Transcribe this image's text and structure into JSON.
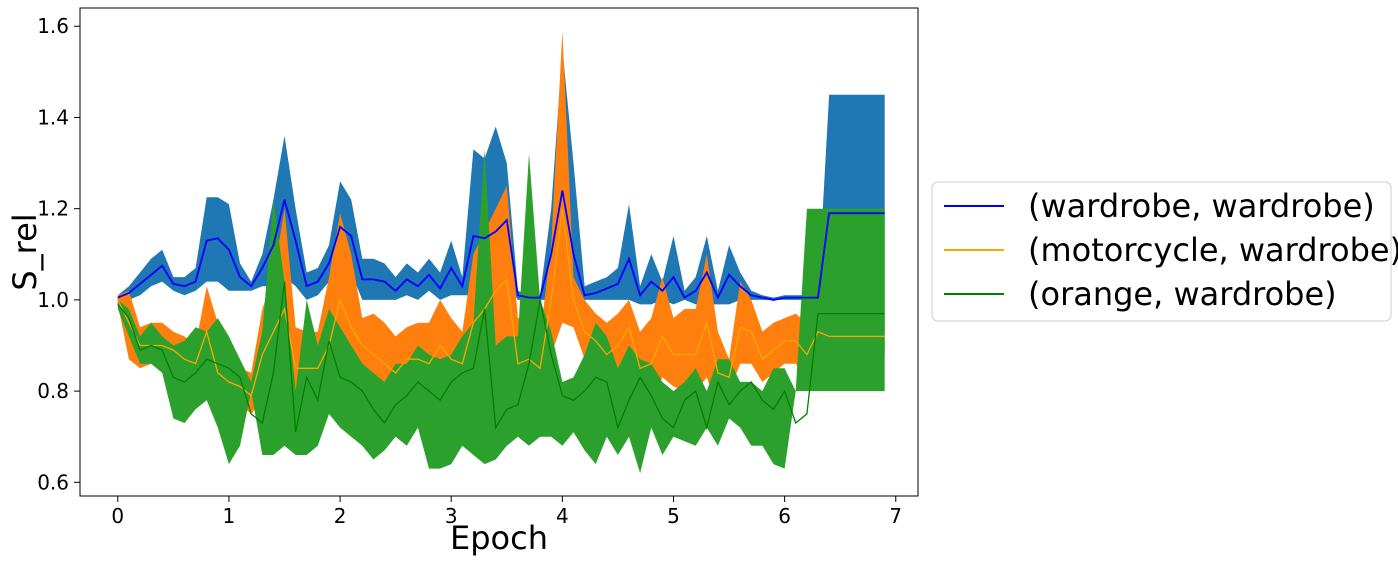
{
  "chart_data": {
    "type": "line",
    "xlabel": "Epoch",
    "ylabel": "S_rel",
    "xlim": [
      -0.34,
      7.2
    ],
    "ylim": [
      0.57,
      1.64
    ],
    "xticks": [
      0,
      1,
      2,
      3,
      4,
      5,
      6,
      7
    ],
    "yticks": [
      0.6,
      0.8,
      1.0,
      1.2,
      1.4,
      1.6
    ],
    "ytick_labels": [
      "0.6",
      "0.8",
      "1.0",
      "1.2",
      "1.4",
      "1.6"
    ],
    "legend_position": "center-right outside",
    "x": [
      0,
      0.1,
      0.2,
      0.3,
      0.4,
      0.5,
      0.6,
      0.7,
      0.8,
      0.9,
      1.0,
      1.1,
      1.2,
      1.3,
      1.4,
      1.5,
      1.6,
      1.7,
      1.8,
      1.9,
      2.0,
      2.1,
      2.2,
      2.3,
      2.4,
      2.5,
      2.6,
      2.7,
      2.8,
      2.9,
      3.0,
      3.1,
      3.2,
      3.3,
      3.4,
      3.5,
      3.6,
      3.7,
      3.8,
      3.9,
      4.0,
      4.1,
      4.2,
      4.3,
      4.4,
      4.5,
      4.6,
      4.7,
      4.8,
      4.9,
      5.0,
      5.1,
      5.2,
      5.3,
      5.4,
      5.5,
      5.6,
      5.7,
      5.8,
      5.9,
      6.0,
      6.1,
      6.2,
      6.3,
      6.4,
      6.5,
      6.6,
      6.7,
      6.8,
      6.9
    ],
    "series": [
      {
        "name": "(wardrobe, wardrobe)",
        "line_color": "#0000ff",
        "band_color": "#1f77b4",
        "mean": [
          1.005,
          1.015,
          1.035,
          1.055,
          1.075,
          1.035,
          1.03,
          1.04,
          1.13,
          1.135,
          1.11,
          1.05,
          1.03,
          1.07,
          1.12,
          1.22,
          1.13,
          1.03,
          1.04,
          1.08,
          1.16,
          1.14,
          1.045,
          1.045,
          1.04,
          1.02,
          1.045,
          1.03,
          1.055,
          1.025,
          1.07,
          1.03,
          1.14,
          1.135,
          1.15,
          1.175,
          1.01,
          1.005,
          1.005,
          1.1,
          1.24,
          1.1,
          1.01,
          1.015,
          1.025,
          1.035,
          1.09,
          1.01,
          1.04,
          1.02,
          1.05,
          1.005,
          1.02,
          1.06,
          1.005,
          1.055,
          1.03,
          1.01,
          1.005,
          1.0,
          1.005,
          1.005,
          1.005,
          1.005,
          1.19,
          1.19,
          1.19,
          1.19,
          1.19,
          1.19
        ],
        "upper": [
          1.01,
          1.03,
          1.06,
          1.09,
          1.11,
          1.05,
          1.05,
          1.07,
          1.225,
          1.225,
          1.21,
          1.08,
          1.04,
          1.1,
          1.22,
          1.36,
          1.2,
          1.06,
          1.07,
          1.12,
          1.26,
          1.22,
          1.09,
          1.09,
          1.08,
          1.05,
          1.08,
          1.06,
          1.09,
          1.06,
          1.13,
          1.05,
          1.33,
          1.31,
          1.38,
          1.3,
          1.02,
          1.01,
          1.01,
          1.2,
          1.55,
          1.3,
          1.03,
          1.04,
          1.05,
          1.07,
          1.21,
          1.03,
          1.1,
          1.04,
          1.14,
          1.02,
          1.05,
          1.14,
          1.02,
          1.12,
          1.06,
          1.02,
          1.01,
          1.005,
          1.01,
          1.01,
          1.01,
          1.01,
          1.45,
          1.45,
          1.45,
          1.45,
          1.45,
          1.45
        ],
        "lower": [
          1.0,
          1.0,
          1.01,
          1.03,
          1.04,
          1.02,
          1.01,
          1.02,
          1.04,
          1.04,
          1.02,
          1.02,
          1.02,
          1.03,
          1.03,
          1.05,
          1.03,
          1.0,
          1.01,
          1.04,
          1.06,
          1.06,
          1.0,
          1.0,
          1.0,
          1.0,
          1.01,
          1.0,
          1.02,
          1.0,
          1.01,
          1.01,
          1.01,
          1.01,
          1.0,
          1.04,
          1.0,
          1.0,
          1.0,
          1.0,
          1.0,
          1.0,
          1.0,
          1.0,
          1.0,
          1.0,
          1.0,
          0.99,
          0.99,
          1.0,
          0.99,
          1.0,
          0.99,
          0.99,
          0.99,
          0.99,
          1.0,
          1.0,
          1.0,
          1.0,
          1.0,
          1.0,
          1.0,
          1.0,
          0.93,
          0.93,
          0.93,
          0.93,
          0.93,
          0.93
        ]
      },
      {
        "name": "(motorcycle, wardrobe)",
        "line_color": "#ffa500",
        "band_color": "#ff7f0e",
        "mean": [
          1.0,
          0.95,
          0.9,
          0.9,
          0.9,
          0.89,
          0.87,
          0.86,
          0.93,
          0.84,
          0.82,
          0.81,
          0.79,
          0.88,
          0.93,
          0.98,
          0.85,
          0.85,
          0.85,
          0.9,
          1.0,
          0.94,
          0.9,
          0.88,
          0.86,
          0.84,
          0.87,
          0.87,
          0.86,
          0.9,
          0.87,
          0.86,
          0.95,
          0.98,
          1.02,
          1.045,
          0.86,
          0.87,
          0.85,
          1.0,
          1.2,
          1.0,
          0.93,
          0.91,
          0.88,
          0.9,
          0.94,
          0.85,
          0.86,
          0.92,
          0.88,
          0.88,
          0.88,
          0.95,
          0.84,
          0.83,
          0.94,
          0.93,
          0.87,
          0.89,
          0.91,
          0.91,
          0.88,
          0.93,
          0.92,
          0.92,
          0.92,
          0.92,
          0.92,
          0.92
        ],
        "upper": [
          1.01,
          1.02,
          0.94,
          0.95,
          0.95,
          0.93,
          0.92,
          0.9,
          1.03,
          0.95,
          0.88,
          0.85,
          0.84,
          0.98,
          1.05,
          1.2,
          0.94,
          0.93,
          0.93,
          1.05,
          1.19,
          1.1,
          0.96,
          0.97,
          0.95,
          0.92,
          0.94,
          0.95,
          0.95,
          1.0,
          0.96,
          0.93,
          1.1,
          1.15,
          1.2,
          1.25,
          0.96,
          0.96,
          0.92,
          1.12,
          1.59,
          1.05,
          1.0,
          0.97,
          0.95,
          0.97,
          1.0,
          0.93,
          0.96,
          1.05,
          0.96,
          0.98,
          0.98,
          1.1,
          0.93,
          0.87,
          1.04,
          1.0,
          0.93,
          0.95,
          0.96,
          0.97,
          0.95,
          0.97,
          0.96,
          0.96,
          0.96,
          0.96,
          0.96,
          0.96
        ],
        "lower": [
          0.99,
          0.87,
          0.85,
          0.86,
          0.85,
          0.85,
          0.83,
          0.82,
          0.84,
          0.76,
          0.77,
          0.77,
          0.75,
          0.78,
          0.82,
          0.83,
          0.77,
          0.8,
          0.8,
          0.8,
          0.86,
          0.84,
          0.84,
          0.81,
          0.8,
          0.78,
          0.82,
          0.81,
          0.8,
          0.82,
          0.8,
          0.8,
          0.83,
          0.84,
          0.86,
          0.9,
          0.78,
          0.8,
          0.8,
          0.88,
          0.95,
          0.94,
          0.87,
          0.86,
          0.82,
          0.84,
          0.88,
          0.79,
          0.78,
          0.83,
          0.81,
          0.8,
          0.8,
          0.83,
          0.76,
          0.8,
          0.86,
          0.86,
          0.82,
          0.84,
          0.86,
          0.86,
          0.82,
          0.88,
          0.88,
          0.88,
          0.88,
          0.88,
          0.88,
          0.88
        ]
      },
      {
        "name": "(orange, wardrobe)",
        "line_color": "#008000",
        "band_color": "#2ca02c",
        "mean": [
          0.99,
          0.96,
          0.89,
          0.9,
          0.89,
          0.83,
          0.82,
          0.84,
          0.87,
          0.86,
          0.85,
          0.83,
          0.75,
          0.73,
          0.84,
          1.04,
          0.71,
          0.83,
          0.78,
          0.91,
          0.83,
          0.82,
          0.8,
          0.76,
          0.73,
          0.77,
          0.79,
          0.82,
          0.8,
          0.78,
          0.82,
          0.84,
          0.85,
          0.98,
          0.72,
          0.76,
          0.77,
          0.86,
          1.0,
          0.88,
          0.79,
          0.78,
          0.8,
          0.83,
          0.82,
          0.72,
          0.78,
          0.83,
          0.79,
          0.74,
          0.72,
          0.78,
          0.8,
          0.72,
          0.82,
          0.77,
          0.8,
          0.82,
          0.78,
          0.76,
          0.8,
          0.73,
          0.75,
          0.97,
          0.97,
          0.97,
          0.97,
          0.97,
          0.97,
          0.97
        ],
        "upper": [
          1.0,
          0.98,
          0.92,
          0.95,
          0.92,
          0.9,
          0.91,
          0.94,
          0.93,
          0.96,
          0.92,
          0.87,
          0.82,
          0.93,
          1.22,
          1.04,
          0.8,
          1.0,
          0.9,
          0.98,
          0.94,
          0.9,
          0.86,
          0.84,
          0.82,
          0.86,
          0.86,
          0.9,
          0.88,
          0.87,
          0.88,
          0.92,
          0.95,
          1.33,
          0.9,
          0.92,
          0.92,
          1.32,
          1.0,
          0.93,
          0.82,
          0.83,
          0.88,
          0.95,
          0.92,
          0.85,
          0.9,
          0.87,
          0.86,
          0.82,
          0.8,
          0.82,
          0.85,
          0.8,
          0.87,
          0.87,
          0.82,
          0.82,
          0.8,
          0.85,
          0.85,
          0.8,
          1.2,
          1.2,
          1.2,
          1.2,
          1.2,
          1.2,
          1.2,
          1.2
        ],
        "lower": [
          0.98,
          0.92,
          0.86,
          0.86,
          0.84,
          0.74,
          0.73,
          0.76,
          0.78,
          0.72,
          0.64,
          0.68,
          0.8,
          0.66,
          0.66,
          0.68,
          0.66,
          0.66,
          0.68,
          0.75,
          0.72,
          0.7,
          0.68,
          0.65,
          0.67,
          0.7,
          0.68,
          0.72,
          0.63,
          0.63,
          0.64,
          0.68,
          0.66,
          0.64,
          0.65,
          0.68,
          0.7,
          0.68,
          0.7,
          0.7,
          0.68,
          0.71,
          0.67,
          0.64,
          0.7,
          0.66,
          0.7,
          0.62,
          0.72,
          0.66,
          0.7,
          0.69,
          0.68,
          0.72,
          0.68,
          0.74,
          0.72,
          0.68,
          0.68,
          0.64,
          0.63,
          0.8,
          0.8,
          0.8,
          0.8,
          0.8,
          0.8,
          0.8,
          0.8,
          0.8
        ]
      }
    ]
  }
}
